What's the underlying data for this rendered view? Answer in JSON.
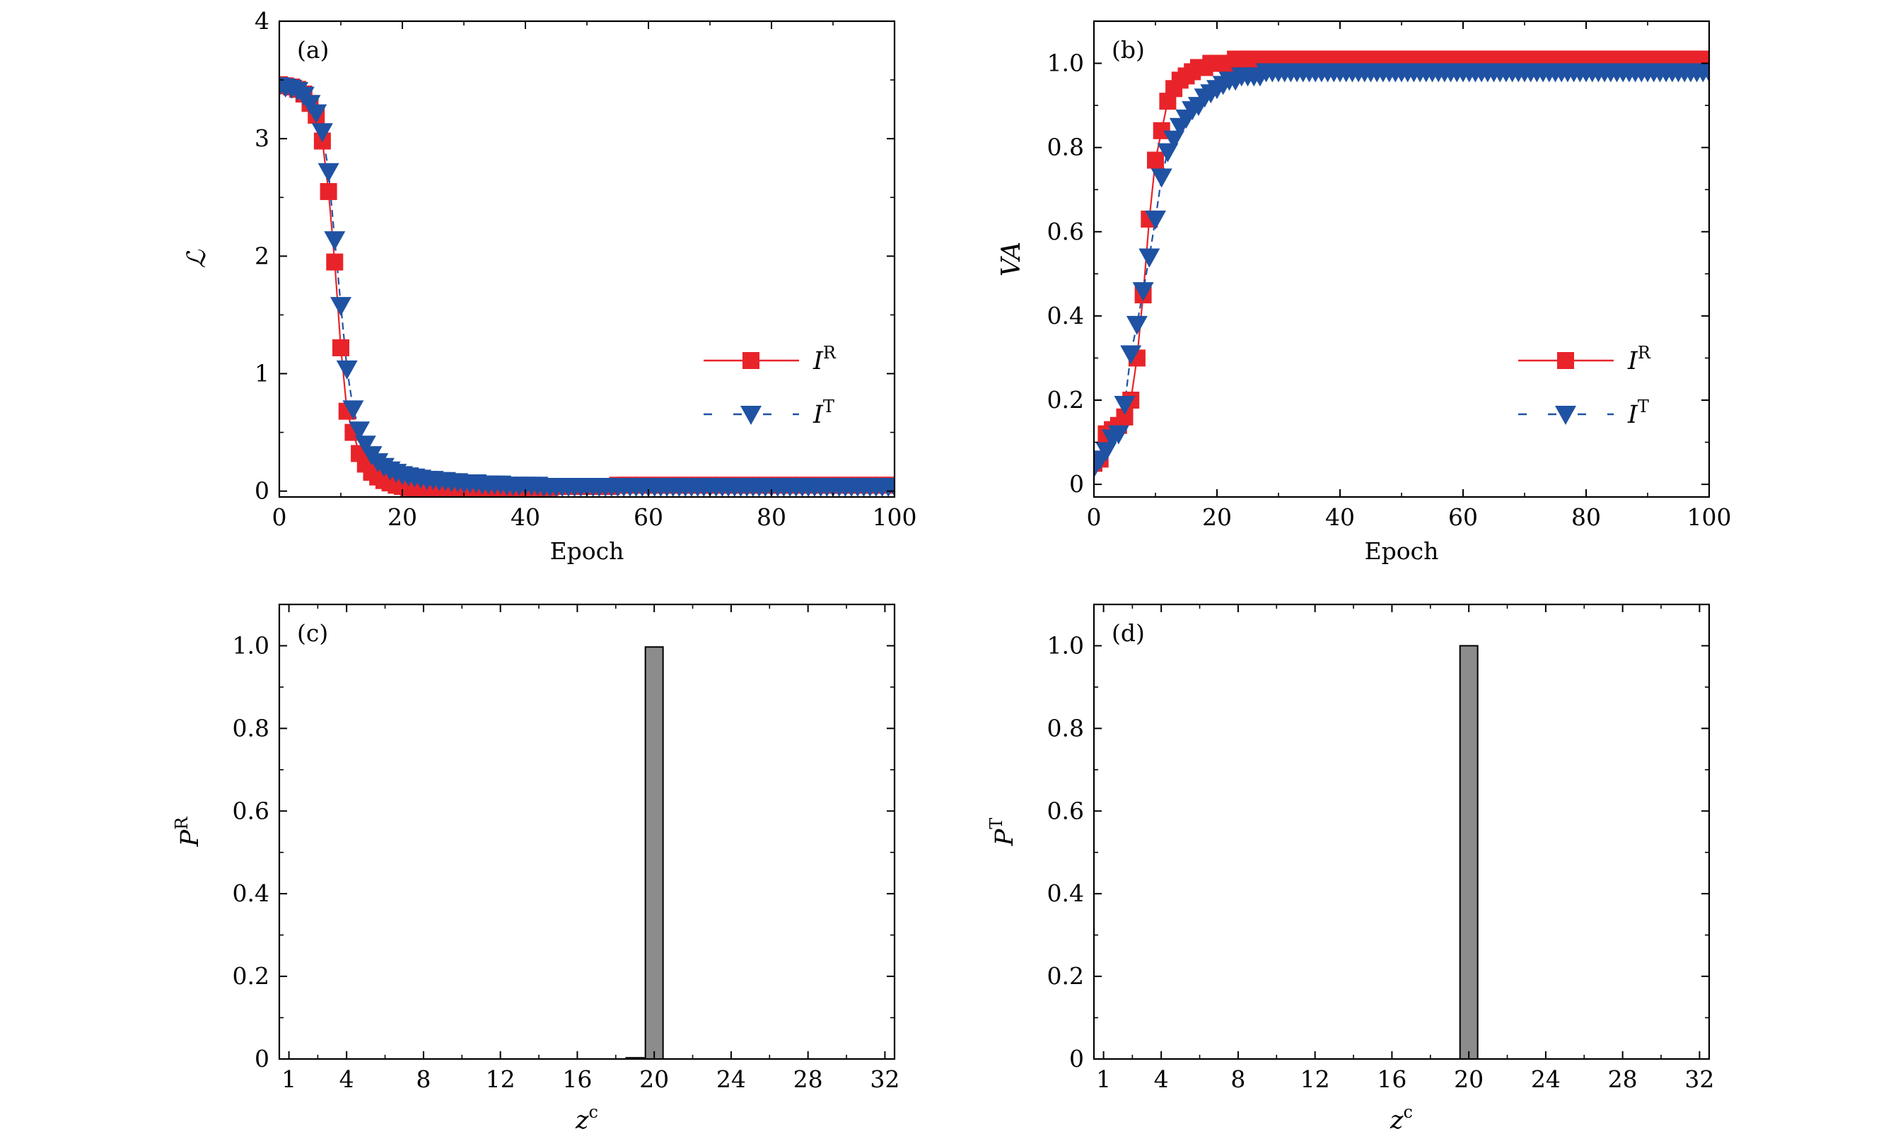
{
  "chart_data": [
    {
      "panel": "(a)",
      "type": "scatter",
      "xlabel": "Epoch",
      "ylabel": "ℒ",
      "xlim": [
        0,
        100
      ],
      "ylim": [
        -0.05,
        4
      ],
      "xticks": [
        0,
        20,
        40,
        60,
        80,
        100
      ],
      "yticks": [
        0,
        1,
        2,
        3,
        4
      ],
      "legend_position": "right",
      "series": [
        {
          "name": "I^R",
          "label_main": "I",
          "label_sup": "R",
          "color": "#e8242a",
          "marker": "square",
          "line": "solid",
          "x": [
            0,
            1,
            2,
            3,
            4,
            5,
            6,
            7,
            8,
            9,
            10,
            11,
            12,
            13,
            14,
            15,
            16,
            17,
            18,
            19,
            20,
            21,
            22,
            23,
            24,
            25,
            26,
            27,
            28,
            29,
            30,
            31,
            32,
            33,
            34,
            35,
            36,
            37,
            38,
            39,
            40,
            41,
            42,
            43,
            44,
            45,
            46,
            47,
            48,
            49,
            50,
            51,
            52,
            53,
            54,
            55,
            56,
            57,
            58,
            59,
            60,
            61,
            62,
            63,
            64,
            65,
            66,
            67,
            68,
            69,
            70,
            71,
            72,
            73,
            74,
            75,
            76,
            77,
            78,
            79,
            80,
            81,
            82,
            83,
            84,
            85,
            86,
            87,
            88,
            89,
            90,
            91,
            92,
            93,
            94,
            95,
            96,
            97,
            98,
            99,
            100
          ],
          "y": [
            3.46,
            3.45,
            3.44,
            3.42,
            3.38,
            3.3,
            3.2,
            2.98,
            2.55,
            1.95,
            1.22,
            0.68,
            0.5,
            0.32,
            0.23,
            0.16,
            0.12,
            0.09,
            0.07,
            0.05,
            0.04,
            0.03,
            0.02,
            0.02,
            0.01,
            0.01,
            0.01,
            0.0,
            0.0,
            0.0,
            0.0,
            0.0,
            0.0,
            0.01,
            0.01,
            0.01,
            0.02,
            0.02,
            0.02,
            0.02,
            0.03,
            0.03,
            0.03,
            0.03,
            0.03,
            0.04,
            0.04,
            0.04,
            0.04,
            0.04,
            0.04,
            0.04,
            0.04,
            0.04,
            0.04,
            0.05,
            0.05,
            0.05,
            0.05,
            0.05,
            0.05,
            0.05,
            0.05,
            0.05,
            0.05,
            0.05,
            0.05,
            0.05,
            0.05,
            0.05,
            0.05,
            0.05,
            0.05,
            0.05,
            0.05,
            0.05,
            0.05,
            0.05,
            0.05,
            0.05,
            0.05,
            0.05,
            0.05,
            0.05,
            0.05,
            0.05,
            0.05,
            0.05,
            0.05,
            0.05,
            0.05,
            0.05,
            0.05,
            0.05,
            0.05,
            0.05,
            0.05,
            0.05,
            0.05,
            0.05,
            0.05
          ]
        },
        {
          "name": "I^T",
          "label_main": "I",
          "label_sup": "T",
          "color": "#1f52a3",
          "marker": "triangle-down",
          "line": "dashed",
          "x": [
            0,
            1,
            2,
            3,
            4,
            5,
            6,
            7,
            8,
            9,
            10,
            11,
            12,
            13,
            14,
            15,
            16,
            17,
            18,
            19,
            20,
            21,
            22,
            23,
            24,
            25,
            26,
            27,
            28,
            29,
            30,
            31,
            32,
            33,
            34,
            35,
            36,
            37,
            38,
            39,
            40,
            41,
            42,
            43,
            44,
            45,
            46,
            47,
            48,
            49,
            50,
            51,
            52,
            53,
            54,
            55,
            56,
            57,
            58,
            59,
            60,
            61,
            62,
            63,
            64,
            65,
            66,
            67,
            68,
            69,
            70,
            71,
            72,
            73,
            74,
            75,
            76,
            77,
            78,
            79,
            80,
            81,
            82,
            83,
            84,
            85,
            86,
            87,
            88,
            89,
            90,
            91,
            92,
            93,
            94,
            95,
            96,
            97,
            98,
            99,
            100
          ],
          "y": [
            3.45,
            3.44,
            3.43,
            3.41,
            3.37,
            3.3,
            3.22,
            3.06,
            2.72,
            2.14,
            1.58,
            1.04,
            0.7,
            0.52,
            0.4,
            0.31,
            0.25,
            0.21,
            0.18,
            0.16,
            0.14,
            0.13,
            0.12,
            0.11,
            0.1,
            0.1,
            0.09,
            0.09,
            0.08,
            0.08,
            0.07,
            0.07,
            0.07,
            0.06,
            0.06,
            0.06,
            0.06,
            0.05,
            0.05,
            0.05,
            0.05,
            0.05,
            0.05,
            0.04,
            0.04,
            0.04,
            0.04,
            0.04,
            0.04,
            0.04,
            0.04,
            0.04,
            0.04,
            0.04,
            0.04,
            0.04,
            0.04,
            0.04,
            0.04,
            0.04,
            0.04,
            0.04,
            0.04,
            0.04,
            0.04,
            0.04,
            0.04,
            0.04,
            0.04,
            0.04,
            0.04,
            0.04,
            0.04,
            0.04,
            0.04,
            0.04,
            0.04,
            0.04,
            0.04,
            0.04,
            0.04,
            0.04,
            0.04,
            0.04,
            0.04,
            0.04,
            0.04,
            0.04,
            0.04,
            0.04,
            0.04,
            0.04,
            0.04,
            0.04,
            0.04,
            0.04,
            0.04,
            0.04,
            0.04,
            0.04,
            0.04
          ]
        }
      ]
    },
    {
      "panel": "(b)",
      "type": "scatter",
      "xlabel": "Epoch",
      "ylabel": "VA",
      "xlim": [
        0,
        100
      ],
      "ylim": [
        -0.03,
        1.1
      ],
      "xticks": [
        0,
        20,
        40,
        60,
        80,
        100
      ],
      "yticks": [
        0,
        0.2,
        0.4,
        0.6,
        0.8,
        1.0
      ],
      "ytick_labels": [
        "0",
        "0.2",
        "0.4",
        "0.6",
        "0.8",
        "1.0"
      ],
      "legend_position": "right",
      "series": [
        {
          "name": "I^R",
          "label_main": "I",
          "label_sup": "R",
          "color": "#e8242a",
          "marker": "square",
          "line": "solid",
          "x": [
            0,
            1,
            2,
            3,
            4,
            5,
            6,
            7,
            8,
            9,
            10,
            11,
            12,
            13,
            14,
            15,
            16,
            17,
            18,
            19,
            20,
            21,
            22,
            23,
            24,
            25,
            26,
            27,
            28,
            29,
            30,
            31,
            32,
            33,
            34,
            35,
            36,
            37,
            38,
            39,
            40,
            41,
            42,
            43,
            44,
            45,
            46,
            47,
            48,
            49,
            50,
            51,
            52,
            53,
            54,
            55,
            56,
            57,
            58,
            59,
            60,
            61,
            62,
            63,
            64,
            65,
            66,
            67,
            68,
            69,
            70,
            71,
            72,
            73,
            74,
            75,
            76,
            77,
            78,
            79,
            80,
            81,
            82,
            83,
            84,
            85,
            86,
            87,
            88,
            89,
            90,
            91,
            92,
            93,
            94,
            95,
            96,
            97,
            98,
            99,
            100
          ],
          "y": [
            0.05,
            0.06,
            0.12,
            0.13,
            0.14,
            0.16,
            0.2,
            0.3,
            0.45,
            0.63,
            0.77,
            0.84,
            0.91,
            0.94,
            0.96,
            0.97,
            0.98,
            0.99,
            0.99,
            1.0,
            1.0,
            1.0,
            1.0,
            1.01,
            1.01,
            1.01,
            1.01,
            1.01,
            1.01,
            1.01,
            1.01,
            1.01,
            1.01,
            1.01,
            1.01,
            1.01,
            1.01,
            1.01,
            1.01,
            1.01,
            1.01,
            1.01,
            1.01,
            1.01,
            1.01,
            1.01,
            1.01,
            1.01,
            1.01,
            1.01,
            1.01,
            1.01,
            1.01,
            1.01,
            1.01,
            1.01,
            1.01,
            1.01,
            1.01,
            1.01,
            1.01,
            1.01,
            1.01,
            1.01,
            1.01,
            1.01,
            1.01,
            1.01,
            1.01,
            1.01,
            1.01,
            1.01,
            1.01,
            1.01,
            1.01,
            1.01,
            1.01,
            1.01,
            1.01,
            1.01,
            1.01,
            1.01,
            1.01,
            1.01,
            1.01,
            1.01,
            1.01,
            1.01,
            1.01,
            1.01,
            1.01,
            1.01,
            1.01,
            1.01,
            1.01,
            1.01,
            1.01,
            1.01,
            1.01,
            1.01,
            1.01
          ]
        },
        {
          "name": "I^T",
          "label_main": "I",
          "label_sup": "T",
          "color": "#1f52a3",
          "marker": "triangle-down",
          "line": "dashed",
          "x": [
            0,
            1,
            2,
            3,
            4,
            5,
            6,
            7,
            8,
            9,
            10,
            11,
            12,
            13,
            14,
            15,
            16,
            17,
            18,
            19,
            20,
            21,
            22,
            23,
            24,
            25,
            26,
            27,
            28,
            29,
            30,
            31,
            32,
            33,
            34,
            35,
            36,
            37,
            38,
            39,
            40,
            41,
            42,
            43,
            44,
            45,
            46,
            47,
            48,
            49,
            50,
            51,
            52,
            53,
            54,
            55,
            56,
            57,
            58,
            59,
            60,
            61,
            62,
            63,
            64,
            65,
            66,
            67,
            68,
            69,
            70,
            71,
            72,
            73,
            74,
            75,
            76,
            77,
            78,
            79,
            80,
            81,
            82,
            83,
            84,
            85,
            86,
            87,
            88,
            89,
            90,
            91,
            92,
            93,
            94,
            95,
            96,
            97,
            98,
            99,
            100
          ],
          "y": [
            0.04,
            0.06,
            0.08,
            0.11,
            0.12,
            0.19,
            0.31,
            0.38,
            0.46,
            0.54,
            0.63,
            0.73,
            0.79,
            0.82,
            0.85,
            0.87,
            0.89,
            0.9,
            0.92,
            0.93,
            0.94,
            0.95,
            0.96,
            0.96,
            0.97,
            0.97,
            0.97,
            0.97,
            0.98,
            0.98,
            0.98,
            0.98,
            0.98,
            0.98,
            0.98,
            0.98,
            0.98,
            0.98,
            0.98,
            0.98,
            0.98,
            0.98,
            0.98,
            0.98,
            0.98,
            0.98,
            0.98,
            0.98,
            0.98,
            0.98,
            0.98,
            0.98,
            0.98,
            0.98,
            0.98,
            0.98,
            0.98,
            0.98,
            0.98,
            0.98,
            0.98,
            0.98,
            0.98,
            0.98,
            0.98,
            0.98,
            0.98,
            0.98,
            0.98,
            0.98,
            0.98,
            0.98,
            0.98,
            0.98,
            0.98,
            0.98,
            0.98,
            0.98,
            0.98,
            0.98,
            0.98,
            0.98,
            0.98,
            0.98,
            0.98,
            0.98,
            0.98,
            0.98,
            0.98,
            0.98,
            0.98,
            0.98,
            0.98,
            0.98,
            0.98,
            0.98,
            0.98,
            0.98,
            0.98,
            0.98,
            0.98
          ]
        }
      ]
    },
    {
      "panel": "(c)",
      "type": "bar",
      "xlabel_main": "z",
      "xlabel_sup": "c",
      "ylabel_main": "P",
      "ylabel_sup": "R",
      "xlim": [
        0.5,
        32.5
      ],
      "ylim": [
        0,
        1.1
      ],
      "xticks": [
        1,
        4,
        8,
        12,
        16,
        20,
        24,
        28,
        32
      ],
      "yticks": [
        0,
        0.2,
        0.4,
        0.6,
        0.8,
        1.0
      ],
      "ytick_labels": [
        "0",
        "0.2",
        "0.4",
        "0.6",
        "0.8",
        "1.0"
      ],
      "bar_color": "#8c8c8c",
      "categories": [
        1,
        2,
        3,
        4,
        5,
        6,
        7,
        8,
        9,
        10,
        11,
        12,
        13,
        14,
        15,
        16,
        17,
        18,
        19,
        20,
        21,
        22,
        23,
        24,
        25,
        26,
        27,
        28,
        29,
        30,
        31,
        32
      ],
      "values": [
        0,
        0,
        0,
        0,
        0,
        0,
        0,
        0,
        0,
        0,
        0,
        0,
        0,
        0,
        0,
        0,
        0,
        0,
        0.003,
        0.997,
        0,
        0,
        0,
        0,
        0,
        0,
        0,
        0,
        0,
        0,
        0,
        0
      ]
    },
    {
      "panel": "(d)",
      "type": "bar",
      "xlabel_main": "z",
      "xlabel_sup": "c",
      "ylabel_main": "P",
      "ylabel_sup": "T",
      "xlim": [
        0.5,
        32.5
      ],
      "ylim": [
        0,
        1.1
      ],
      "xticks": [
        1,
        4,
        8,
        12,
        16,
        20,
        24,
        28,
        32
      ],
      "yticks": [
        0,
        0.2,
        0.4,
        0.6,
        0.8,
        1.0
      ],
      "ytick_labels": [
        "0",
        "0.2",
        "0.4",
        "0.6",
        "0.8",
        "1.0"
      ],
      "bar_color": "#8c8c8c",
      "categories": [
        1,
        2,
        3,
        4,
        5,
        6,
        7,
        8,
        9,
        10,
        11,
        12,
        13,
        14,
        15,
        16,
        17,
        18,
        19,
        20,
        21,
        22,
        23,
        24,
        25,
        26,
        27,
        28,
        29,
        30,
        31,
        32
      ],
      "values": [
        0,
        0,
        0,
        0,
        0,
        0,
        0,
        0,
        0,
        0,
        0,
        0,
        0,
        0,
        0,
        0,
        0,
        0,
        0,
        1.0,
        0,
        0,
        0,
        0,
        0,
        0,
        0,
        0,
        0,
        0,
        0,
        0
      ]
    }
  ]
}
